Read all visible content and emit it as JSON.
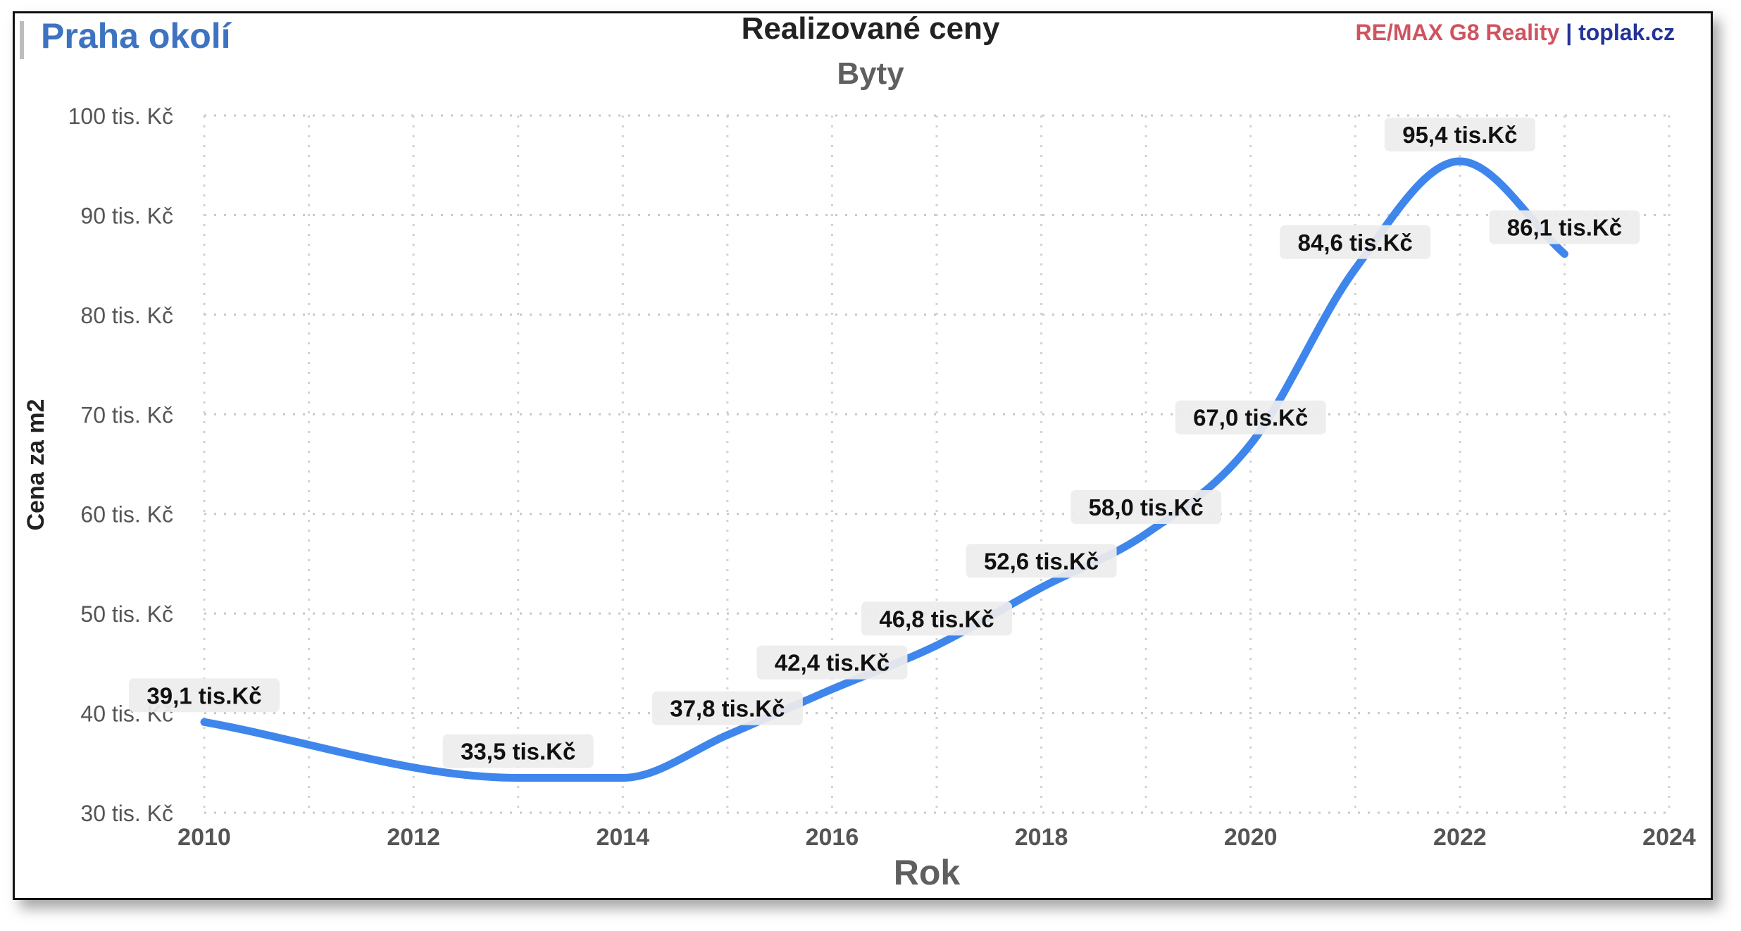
{
  "header": {
    "region": "Praha okolí",
    "brand_remax": "RE/MAX G8 Reality",
    "brand_sep": " | ",
    "brand_site": "toplak.cz"
  },
  "chart_data": {
    "type": "line",
    "title": "Realizované ceny",
    "subtitle": "Byty",
    "xlabel": "Rok",
    "ylabel": "Cena za m2",
    "xlim": [
      2010,
      2024
    ],
    "ylim": [
      30,
      100
    ],
    "x_ticks": [
      2010,
      2012,
      2014,
      2016,
      2018,
      2020,
      2022,
      2024
    ],
    "y_ticks": [
      30,
      40,
      50,
      60,
      70,
      80,
      90,
      100
    ],
    "y_tick_labels": [
      "30 tis. Kč",
      "40 tis. Kč",
      "50 tis. Kč",
      "60 tis. Kč",
      "70 tis. Kč",
      "80 tis. Kč",
      "90 tis. Kč",
      "100 tis. Kč"
    ],
    "grid": true,
    "line_color": "#3f86ec",
    "series": [
      {
        "x": [
          2010,
          2013,
          2014,
          2015,
          2016,
          2017,
          2018,
          2019,
          2020,
          2021,
          2022,
          2023
        ],
        "values": [
          39.1,
          33.5,
          33.5,
          37.8,
          42.4,
          46.8,
          52.6,
          58.0,
          67.0,
          84.6,
          95.4,
          86.1
        ]
      }
    ],
    "data_labels": [
      {
        "x": 2010,
        "y": 39.1,
        "text": "39,1 tis.Kč"
      },
      {
        "x": 2013,
        "y": 33.5,
        "text": "33,5 tis.Kč"
      },
      {
        "x": 2015,
        "y": 37.8,
        "text": "37,8 tis.Kč"
      },
      {
        "x": 2016,
        "y": 42.4,
        "text": "42,4 tis.Kč"
      },
      {
        "x": 2017,
        "y": 46.8,
        "text": "46,8 tis.Kč"
      },
      {
        "x": 2018,
        "y": 52.6,
        "text": "52,6 tis.Kč"
      },
      {
        "x": 2019,
        "y": 58.0,
        "text": "58,0 tis.Kč"
      },
      {
        "x": 2020,
        "y": 67.0,
        "text": "67,0 tis.Kč"
      },
      {
        "x": 2021,
        "y": 84.6,
        "text": "84,6 tis.Kč"
      },
      {
        "x": 2022,
        "y": 95.4,
        "text": "95,4 tis.Kč"
      },
      {
        "x": 2023,
        "y": 86.1,
        "text": "86,1 tis.Kč"
      }
    ]
  }
}
